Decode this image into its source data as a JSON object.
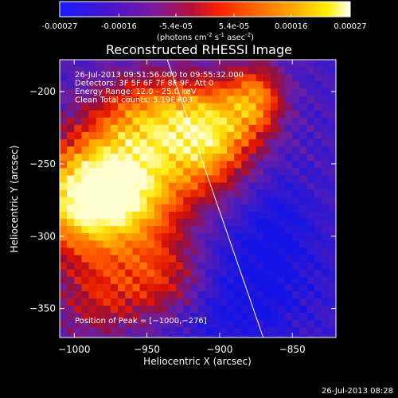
{
  "colorbar": {
    "ticks": [
      "-0.00027",
      "-0.00016",
      "-5.4e-05",
      "5.4e-05",
      "0.00016",
      "0.00027"
    ],
    "tick_values": [
      -0.00027,
      -0.00016,
      -5.4e-05,
      5.4e-05,
      0.00016,
      0.00027
    ],
    "range": [
      -0.00027,
      0.00027
    ],
    "unit_prefix": "(photons cm",
    "unit_exp1": "-2",
    "unit_mid": " s",
    "unit_exp2": "-1",
    "unit_mid2": " asec",
    "unit_exp3": "-2",
    "unit_suffix": ")"
  },
  "chart_data": {
    "type": "heatmap",
    "title": "Reconstructed RHESSI Image",
    "xlabel": "Heliocentric X (arcsec)",
    "ylabel": "Heliocentric Y (arcsec)",
    "xlim": [
      -1010,
      -820
    ],
    "ylim": [
      -370,
      -178
    ],
    "xticks": [
      -1000,
      -950,
      -900,
      -850
    ],
    "yticks": [
      -200,
      -250,
      -300,
      -350
    ],
    "xtick_labels": [
      "−1000",
      "−950",
      "−900",
      "−850"
    ],
    "ytick_labels": [
      "−200",
      "−250",
      "−300",
      "−350"
    ],
    "limb_line": {
      "start": [
        -936,
        -178
      ],
      "end": [
        -870,
        -370
      ]
    },
    "annotations": [
      "26-Jul-2013 09:51:56.000 to 09:55:32.000",
      "Detectors: 3F 5F 6F 7F 8F 9F, Att 0",
      "Energy Range: 12.0 - 25.0 keV",
      "Clean    Total counts: 5.19E+03"
    ],
    "peak_label": "Position of Peak = [−1000,−276]",
    "peak": [
      -1000,
      -276
    ]
  },
  "timestamp": "26-Jul-2013 08:28"
}
